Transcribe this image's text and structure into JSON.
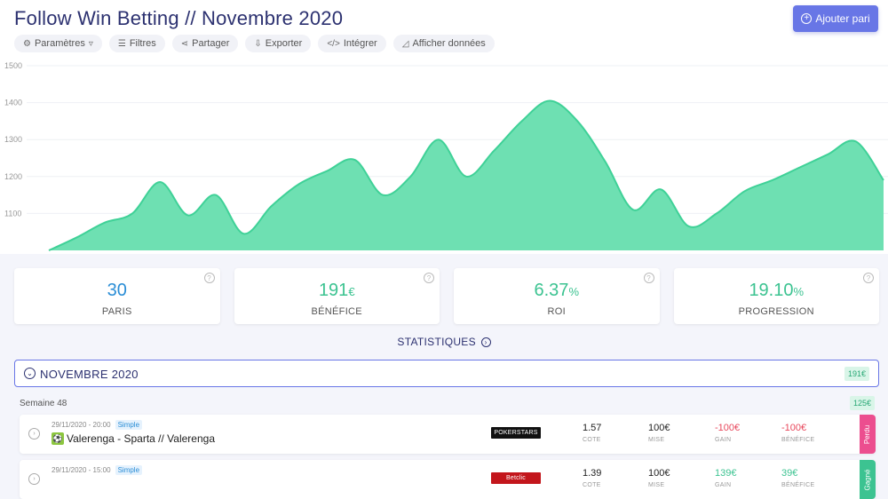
{
  "header": {
    "title": "Follow Win Betting // Novembre 2020",
    "add_button": "Ajouter pari",
    "toolbar": [
      {
        "label": "Paramètres",
        "icon": "gears-icon"
      },
      {
        "label": "Filtres",
        "icon": "sliders-icon"
      },
      {
        "label": "Partager",
        "icon": "share-icon"
      },
      {
        "label": "Exporter",
        "icon": "download-icon"
      },
      {
        "label": "Intégrer",
        "icon": "code-icon"
      },
      {
        "label": "Afficher données",
        "icon": "area-chart-icon"
      }
    ]
  },
  "chart_data": {
    "type": "area",
    "color": "#6ee0b2",
    "ylim": [
      1000,
      1500
    ],
    "yticks": [
      "1500",
      "1400",
      "1300",
      "1200",
      "1100"
    ],
    "grid": true,
    "values": [
      1000,
      1035,
      1075,
      1100,
      1185,
      1095,
      1150,
      1045,
      1120,
      1180,
      1215,
      1245,
      1150,
      1200,
      1300,
      1200,
      1270,
      1350,
      1405,
      1350,
      1240,
      1110,
      1165,
      1065,
      1100,
      1160,
      1190,
      1225,
      1260,
      1295,
      1190
    ]
  },
  "stats": [
    {
      "value": "30",
      "unit": "",
      "label": "PARIS",
      "color": "#2b8ed6"
    },
    {
      "value": "191",
      "unit": "€",
      "label": "BÉNÉFICE",
      "color": "#3cc391"
    },
    {
      "value": "6.37",
      "unit": "%",
      "label": "ROI",
      "color": "#3cc391"
    },
    {
      "value": "19.10",
      "unit": "%",
      "label": "PROGRESSION",
      "color": "#3cc391"
    }
  ],
  "stats_link": "STATISTIQUES",
  "month": {
    "label": "NOVEMBRE 2020",
    "badge": "191€"
  },
  "week": {
    "label": "Semaine 48",
    "badge": "125€"
  },
  "bets": [
    {
      "date": "29/11/2020 - 20:00",
      "type": "Simple",
      "match": "Valerenga - Sparta // Valerenga",
      "bookmaker": "POKERSTARS",
      "cote": "1.57",
      "cote_label": "COTE",
      "mise": "100€",
      "mise_label": "MISE",
      "gain": "-100€",
      "gain_label": "GAIN",
      "benefice": "-100€",
      "benefice_label": "BÉNÉFICE",
      "status": "Perdu"
    },
    {
      "date": "29/11/2020 - 15:00",
      "type": "Simple",
      "match": "",
      "bookmaker": "Betclic",
      "cote": "1.39",
      "cote_label": "COTE",
      "mise": "100€",
      "mise_label": "MISE",
      "gain": "139€",
      "gain_label": "GAIN",
      "benefice": "39€",
      "benefice_label": "BÉNÉFICE",
      "status": "Gagné"
    }
  ]
}
